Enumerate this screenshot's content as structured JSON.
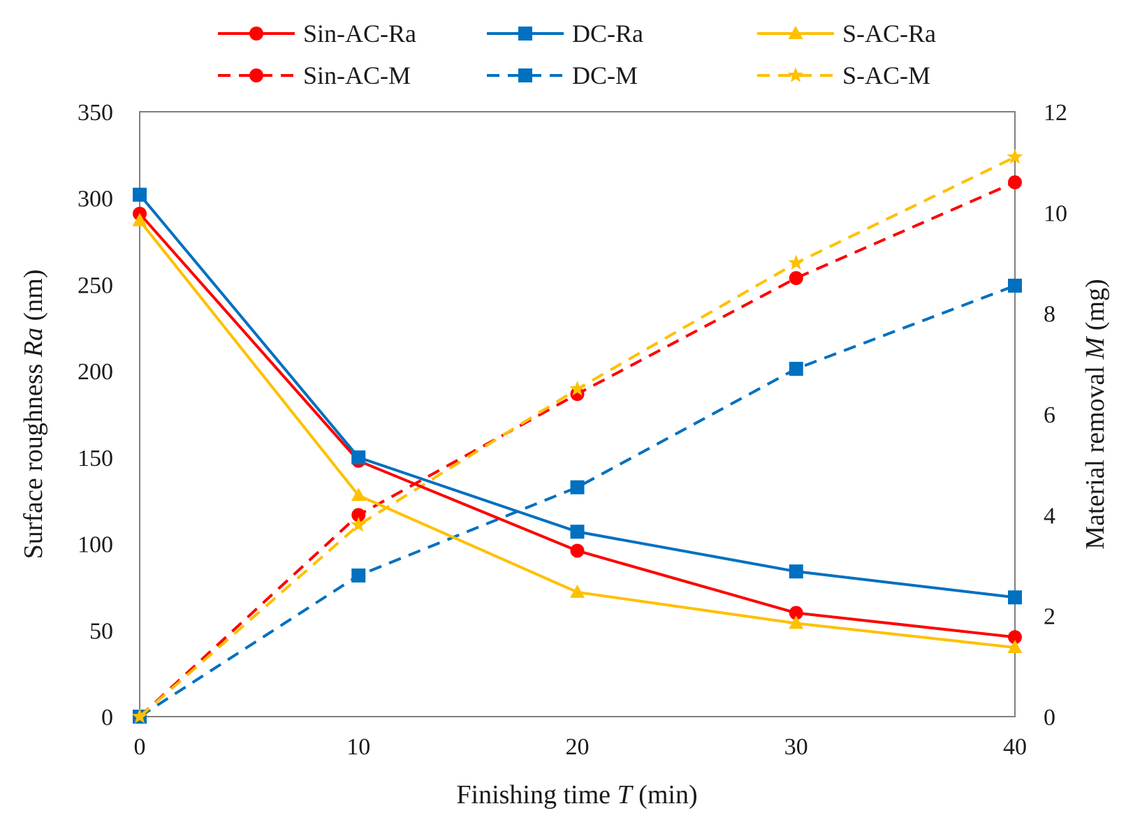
{
  "chart_data": {
    "type": "line",
    "x": [
      0,
      10,
      20,
      30,
      40
    ],
    "xlabel": {
      "prefix": "Finishing time ",
      "var": "T",
      "suffix": " (min)"
    },
    "ylabel_left": {
      "prefix": "Surface roughness ",
      "var": "Ra",
      "suffix": " (nm)"
    },
    "ylabel_right": {
      "prefix": "Material removal ",
      "var": "M",
      "suffix": " (mg)"
    },
    "xlim": [
      0,
      40
    ],
    "ylim_left": [
      0,
      350
    ],
    "ylim_right": [
      0,
      12
    ],
    "xticks": [
      "0",
      "10",
      "20",
      "30",
      "40"
    ],
    "yticks_left": [
      "0",
      "50",
      "100",
      "150",
      "200",
      "250",
      "300",
      "350"
    ],
    "yticks_right": [
      "0",
      "2",
      "4",
      "6",
      "8",
      "10",
      "12"
    ],
    "legend_position": "top",
    "series": [
      {
        "name": "Sin-AC-Ra",
        "axis": "left",
        "values": [
          291,
          148,
          96,
          60,
          46
        ],
        "color": "#ff0000",
        "marker": "circle",
        "dash": false
      },
      {
        "name": "DC-Ra",
        "axis": "left",
        "values": [
          302,
          150,
          107,
          84,
          69
        ],
        "color": "#0070c0",
        "marker": "square",
        "dash": false
      },
      {
        "name": "S-AC-Ra",
        "axis": "left",
        "values": [
          287,
          128,
          72,
          54,
          40
        ],
        "color": "#ffc000",
        "marker": "triangle",
        "dash": false
      },
      {
        "name": "Sin-AC-M",
        "axis": "right",
        "values": [
          0,
          4.0,
          6.4,
          8.7,
          10.6
        ],
        "color": "#ff0000",
        "marker": "circle",
        "dash": true
      },
      {
        "name": "DC-M",
        "axis": "right",
        "values": [
          0,
          2.8,
          4.55,
          6.9,
          8.55
        ],
        "color": "#0070c0",
        "marker": "square",
        "dash": true
      },
      {
        "name": "S-AC-M",
        "axis": "right",
        "values": [
          0,
          3.8,
          6.5,
          9.0,
          11.1
        ],
        "color": "#ffc000",
        "marker": "star",
        "dash": true
      }
    ]
  }
}
